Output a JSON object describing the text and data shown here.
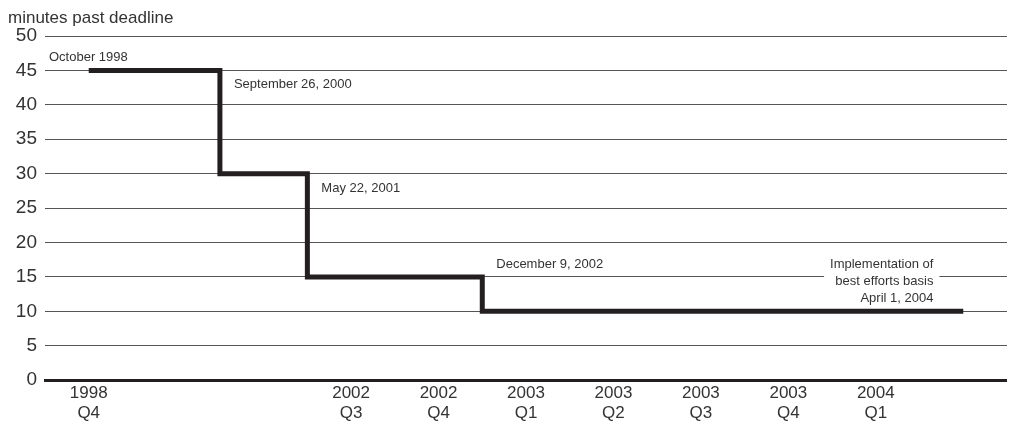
{
  "chart_data": {
    "type": "step",
    "ylabel": "minutes past deadline",
    "categories": [
      "1998\nQ4",
      null,
      null,
      "2002\nQ3",
      "2002\nQ4",
      "2003\nQ1",
      "2003\nQ2",
      "2003\nQ3",
      "2003\nQ4",
      "2004\nQ1",
      null
    ],
    "values": [
      45,
      45,
      30,
      15,
      15,
      10,
      10,
      10,
      10,
      10,
      10
    ],
    "color": "#231f20",
    "ylim": [
      0,
      50
    ],
    "yticks": [
      0,
      5,
      10,
      15,
      20,
      25,
      30,
      35,
      40,
      45,
      50
    ],
    "grid": "y",
    "annotations": [
      "October 1998",
      "September 26, 2000",
      "May 22, 2001",
      "December 9, 2002",
      "Implementation of\nbest efforts basis\nApril 1, 2004"
    ]
  }
}
